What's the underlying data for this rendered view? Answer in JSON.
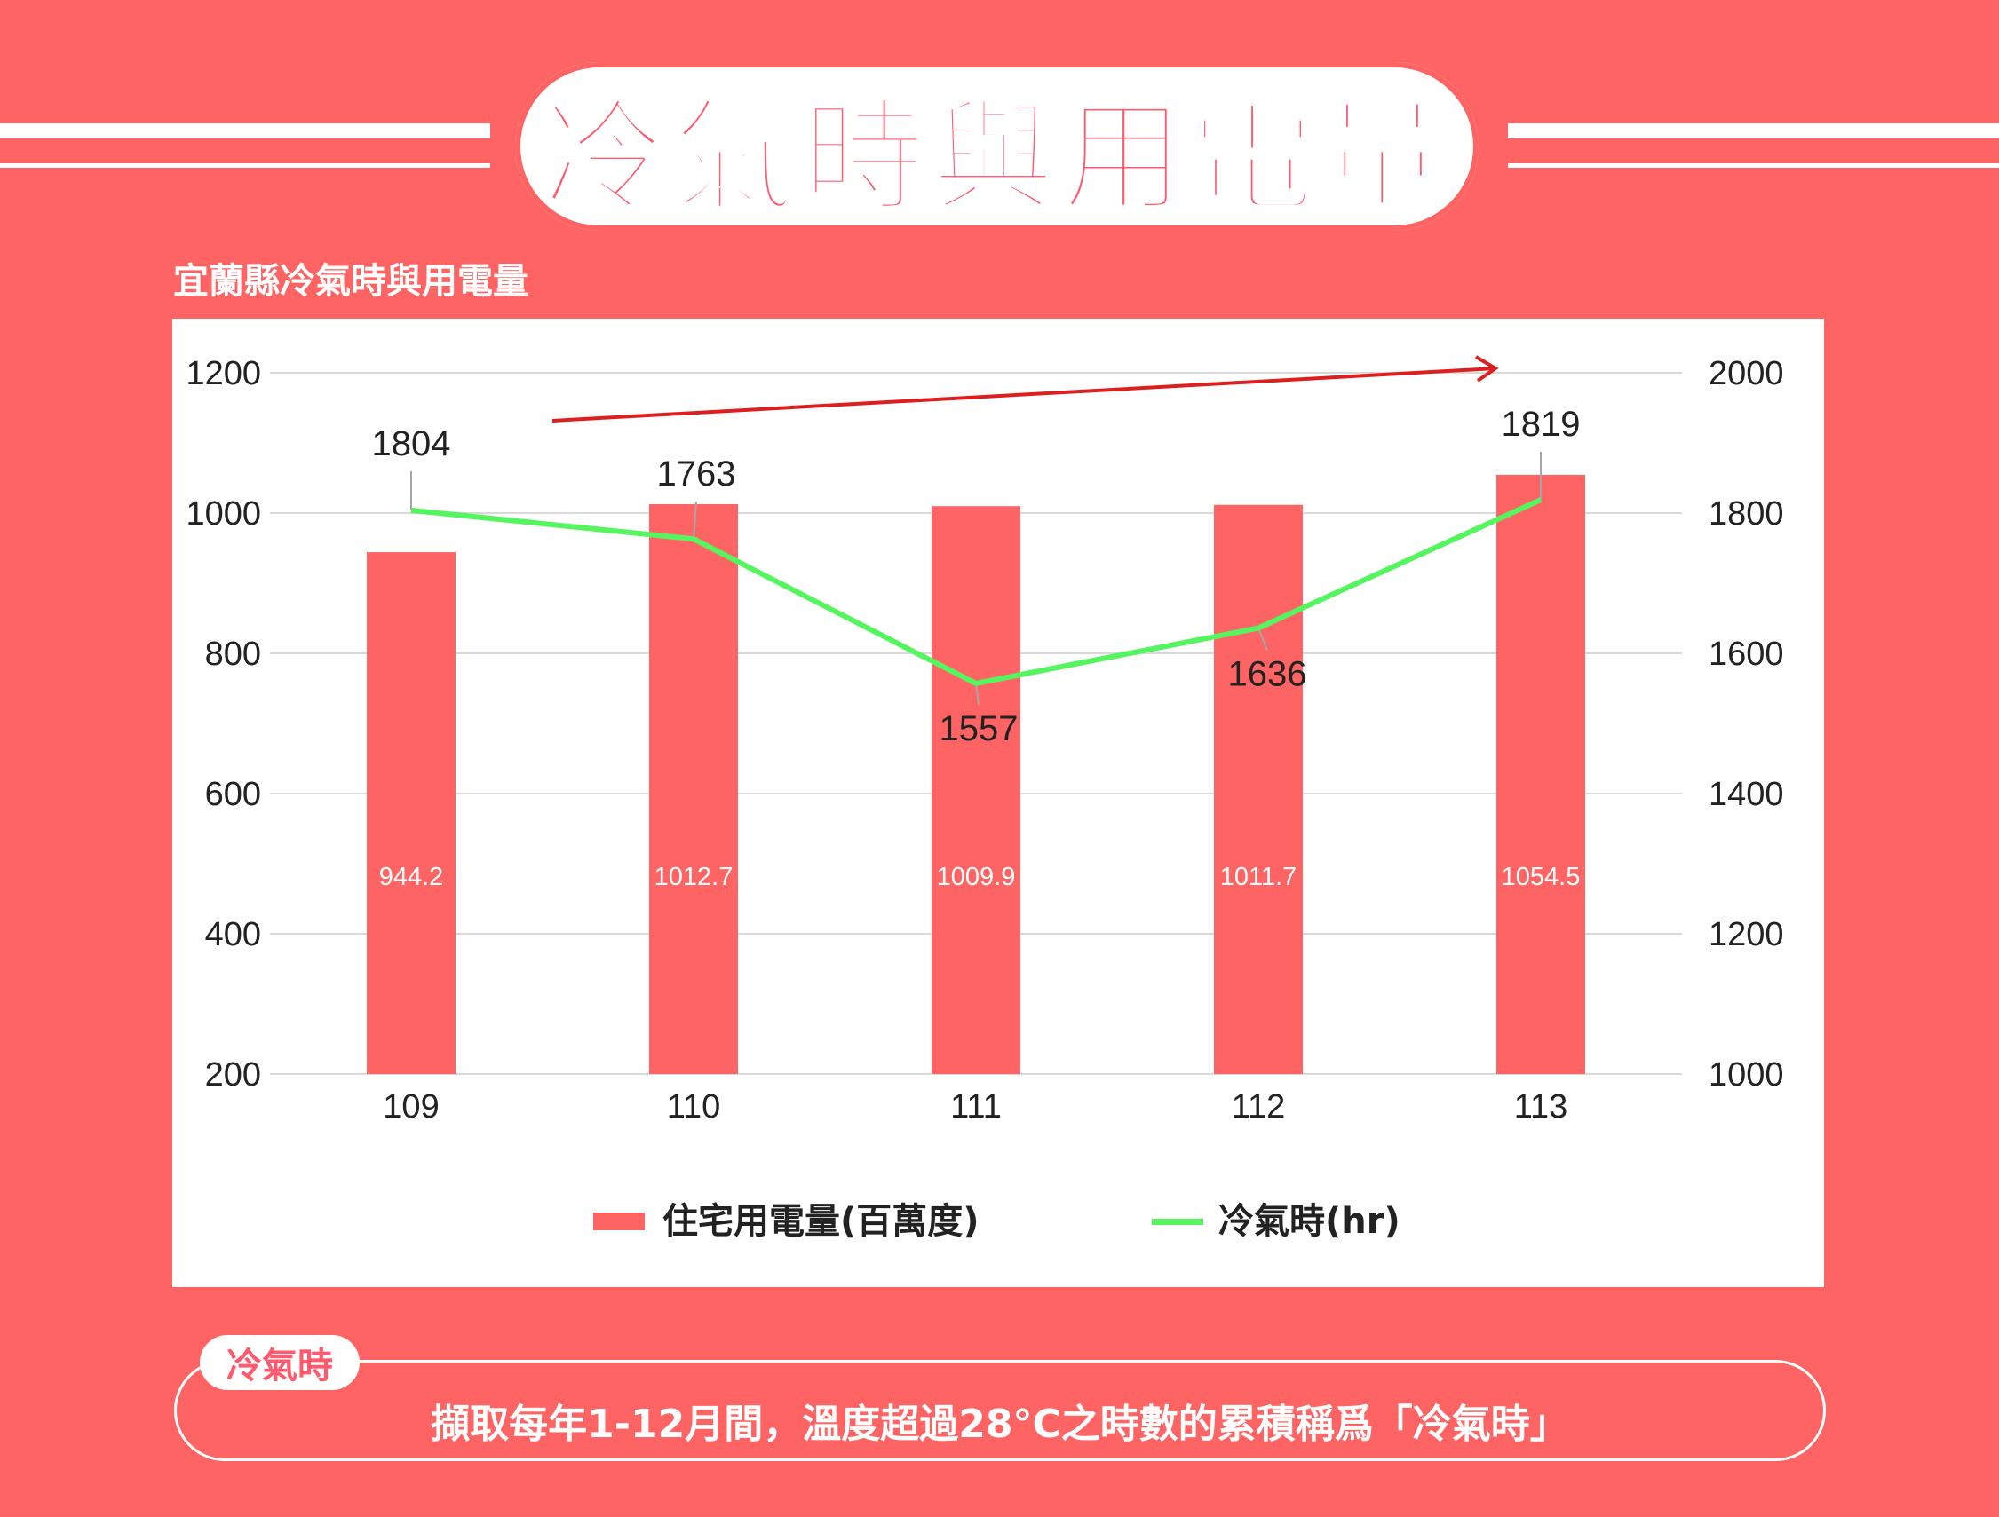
{
  "header": {
    "title": "冷氣時與用電量",
    "subtitle": "宜蘭縣冷氣時與用電量"
  },
  "definition": {
    "tag": "冷氣時",
    "text": "擷取每年1-12月間，溫度超過28°C之時數的累積稱爲「冷氣時」"
  },
  "colors": {
    "background": "#ff6464",
    "bar": "#ff6464",
    "line": "#55f55f",
    "arrow": "#dd1f1f",
    "title": "#ff5a6e"
  },
  "chart_data": {
    "type": "bar",
    "categories": [
      "109",
      "110",
      "111",
      "112",
      "113"
    ],
    "series": [
      {
        "name": "住宅用電量(百萬度)",
        "type": "bar",
        "axis": "left",
        "values": [
          944.2,
          1012.7,
          1009.9,
          1011.7,
          1054.5
        ],
        "labels": [
          "944.2",
          "1012.7",
          "1009.9",
          "1011.7",
          "1054.5"
        ]
      },
      {
        "name": "冷氣時(hr)",
        "type": "line",
        "axis": "right",
        "values": [
          1804,
          1763,
          1557,
          1636,
          1819
        ],
        "labels": [
          "1804",
          "1763",
          "1557",
          "1636",
          "1819"
        ]
      }
    ],
    "y_left": {
      "min": 200,
      "max": 1200,
      "ticks": [
        "1200",
        "1000",
        "800",
        "600",
        "400",
        "200"
      ]
    },
    "y_right": {
      "min": 1000,
      "max": 2000,
      "ticks": [
        "2000",
        "1800",
        "1600",
        "1400",
        "1200",
        "1000"
      ]
    },
    "grid": true,
    "legend": "bottom"
  }
}
